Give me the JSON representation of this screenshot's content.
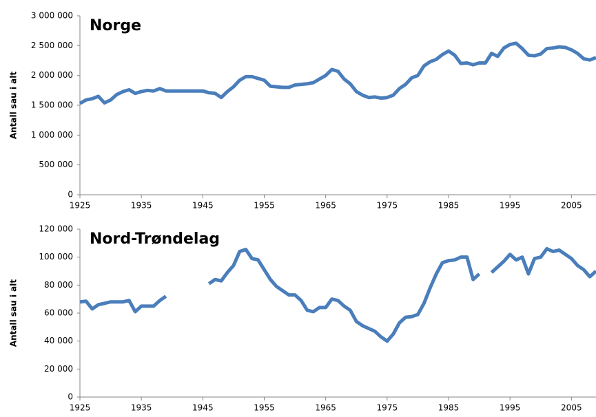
{
  "chart_data": [
    {
      "type": "line",
      "title": "Norge",
      "y_label": "Antall sau i alt",
      "x": [
        1925,
        1926,
        1927,
        1928,
        1929,
        1930,
        1931,
        1932,
        1933,
        1934,
        1935,
        1936,
        1937,
        1938,
        1939,
        1940,
        1941,
        1942,
        1943,
        1944,
        1945,
        1946,
        1947,
        1948,
        1949,
        1950,
        1951,
        1952,
        1953,
        1954,
        1955,
        1956,
        1957,
        1958,
        1959,
        1960,
        1961,
        1962,
        1963,
        1964,
        1965,
        1966,
        1967,
        1968,
        1969,
        1970,
        1971,
        1972,
        1973,
        1974,
        1975,
        1976,
        1977,
        1978,
        1979,
        1980,
        1981,
        1982,
        1983,
        1984,
        1985,
        1986,
        1987,
        1988,
        1989,
        1990,
        1991,
        1992,
        1993,
        1994,
        1995,
        1996,
        1997,
        1998,
        1999,
        2000,
        2001,
        2002,
        2003,
        2004,
        2005,
        2006,
        2007,
        2008,
        2009
      ],
      "series": [
        {
          "color": "#4a7ebb",
          "values": [
            1530000,
            1590000,
            1610000,
            1650000,
            1540000,
            1590000,
            1680000,
            1730000,
            1760000,
            1700000,
            1730000,
            1750000,
            1740000,
            1780000,
            1740000,
            1740000,
            1740000,
            1740000,
            1740000,
            1740000,
            1740000,
            1710000,
            1700000,
            1630000,
            1730000,
            1810000,
            1920000,
            1980000,
            1980000,
            1950000,
            1920000,
            1820000,
            1810000,
            1800000,
            1800000,
            1840000,
            1850000,
            1860000,
            1880000,
            1940000,
            2000000,
            2100000,
            2070000,
            1940000,
            1860000,
            1730000,
            1670000,
            1630000,
            1640000,
            1620000,
            1630000,
            1670000,
            1780000,
            1850000,
            1960000,
            2000000,
            2160000,
            2230000,
            2270000,
            2350000,
            2410000,
            2340000,
            2200000,
            2210000,
            2180000,
            2210000,
            2210000,
            2370000,
            2320000,
            2460000,
            2520000,
            2540000,
            2450000,
            2340000,
            2330000,
            2360000,
            2450000,
            2460000,
            2480000,
            2470000,
            2430000,
            2370000,
            2280000,
            2260000,
            2300000
          ]
        }
      ],
      "xlim": [
        1925,
        2009
      ],
      "xticks": [
        1925,
        1935,
        1945,
        1955,
        1965,
        1975,
        1985,
        1995,
        2005
      ],
      "ylim": [
        0,
        3000000
      ],
      "yticks": [
        0,
        {
          "value": 500000,
          "label": "500 000"
        },
        {
          "value": 1000000,
          "label": "1 000 000"
        },
        {
          "value": 1500000,
          "label": "1 500 000"
        },
        {
          "value": 2000000,
          "label": "2 000 000"
        },
        {
          "value": 2500000,
          "label": "2 500 000"
        },
        {
          "value": 3000000,
          "label": "3 000 000"
        }
      ]
    },
    {
      "type": "line",
      "title": "Nord-Trøndelag",
      "y_label": "Antall sau i alt",
      "x": [
        1925,
        1926,
        1927,
        1928,
        1929,
        1930,
        1931,
        1932,
        1933,
        1934,
        1935,
        1936,
        1937,
        1938,
        1939,
        1940,
        1941,
        1942,
        1943,
        1944,
        1945,
        1946,
        1947,
        1948,
        1949,
        1950,
        1951,
        1952,
        1953,
        1954,
        1955,
        1956,
        1957,
        1958,
        1959,
        1960,
        1961,
        1962,
        1963,
        1964,
        1965,
        1966,
        1967,
        1968,
        1969,
        1970,
        1971,
        1972,
        1973,
        1974,
        1975,
        1976,
        1977,
        1978,
        1979,
        1980,
        1981,
        1982,
        1983,
        1984,
        1985,
        1986,
        1987,
        1988,
        1989,
        1990,
        1991,
        1992,
        1993,
        1994,
        1995,
        1996,
        1997,
        1998,
        1999,
        2000,
        2001,
        2002,
        2003,
        2004,
        2005,
        2006,
        2007,
        2008,
        2009
      ],
      "series": [
        {
          "color": "#4a7ebb",
          "values": [
            68000,
            68500,
            63000,
            66000,
            67000,
            68000,
            68000,
            68000,
            69000,
            61000,
            65000,
            65000,
            65000,
            69000,
            72000,
            null,
            null,
            null,
            null,
            null,
            null,
            81000,
            84000,
            83000,
            89000,
            94000,
            104000,
            105500,
            99000,
            98000,
            91000,
            84000,
            79000,
            76000,
            73000,
            73000,
            69000,
            62000,
            61000,
            64000,
            64000,
            70000,
            69000,
            65000,
            62000,
            54000,
            51000,
            49000,
            47000,
            43000,
            40000,
            45000,
            53000,
            57000,
            57500,
            59000,
            67000,
            78000,
            88000,
            96000,
            97500,
            98000,
            100000,
            100000,
            84000,
            88000,
            null,
            89000,
            93000,
            97000,
            102000,
            98000,
            100000,
            88000,
            99000,
            100000,
            106000,
            104000,
            105000,
            102000,
            99000,
            94000,
            91000,
            86000,
            90000
          ]
        }
      ],
      "xlim": [
        1925,
        2009
      ],
      "xticks": [
        1925,
        1935,
        1945,
        1955,
        1965,
        1975,
        1985,
        1995,
        2005
      ],
      "ylim": [
        0,
        120000
      ],
      "yticks": [
        0,
        {
          "value": 20000,
          "label": "20 000"
        },
        {
          "value": 40000,
          "label": "40 000"
        },
        {
          "value": 60000,
          "label": "60 000"
        },
        {
          "value": 80000,
          "label": "80 000"
        },
        {
          "value": 100000,
          "label": "100 000"
        },
        {
          "value": 120000,
          "label": "120 000"
        }
      ]
    }
  ]
}
